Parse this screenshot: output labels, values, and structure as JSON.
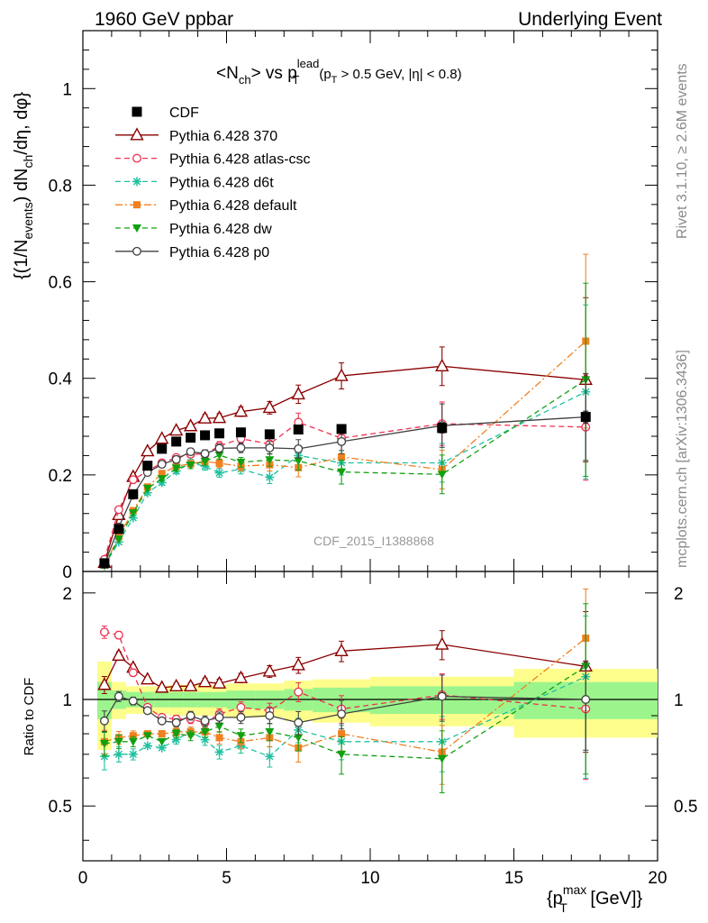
{
  "header": {
    "left": "1960 GeV ppbar",
    "right": "Underlying Event"
  },
  "side_labels": {
    "rivet": "Rivet 3.1.10, ≥ 2.6M events",
    "mcplots": "mcplots.cern.ch [arXiv:1306.3436]"
  },
  "watermark": "CDF_2015_I1388868",
  "plot_title": {
    "main": "<N",
    "main_sub": "ch",
    "vs": "> vs p",
    "vs_sup": "lead",
    "vs_sub": "T",
    "cut": "(p",
    "cut_sub": "T",
    "cut_rest": " > 0.5 GeV, |η| < 0.8)"
  },
  "axes": {
    "ylabel_top": "{(1/N",
    "ylabel_top_sub": "events",
    "ylabel_top_rest": ") dN",
    "ylabel_top_sub2": "ch",
    "ylabel_top_end": "/dη, dφ}",
    "ylabel_ratio": "Ratio to CDF",
    "xlabel": "{p",
    "xlabel_sup": "max",
    "xlabel_sub": "T",
    "xlabel_end": " [GeV]}"
  },
  "colors": {
    "cdf": "#000000",
    "p370": "#8b0000",
    "atlas": "#f03050",
    "d6t": "#20c0a0",
    "default": "#f08020",
    "dw": "#10a010",
    "p0": "#404040",
    "band_inner": "#9cf58c",
    "band_outer": "#fdfd8c"
  },
  "chart_data": [
    {
      "type": "scatter",
      "panel": "main",
      "xlim": [
        0,
        20
      ],
      "ylim": [
        0,
        1.12
      ],
      "x_ticks": [
        "0",
        "5",
        "10",
        "15",
        "20"
      ],
      "y_ticks": [
        "0",
        "0.2",
        "0.4",
        "0.6",
        "0.8",
        "1"
      ],
      "x": [
        0.75,
        1.25,
        1.75,
        2.25,
        2.75,
        3.25,
        3.75,
        4.25,
        4.75,
        5.5,
        6.5,
        7.5,
        9.0,
        12.5,
        17.5
      ],
      "series": [
        {
          "name": "CDF",
          "key": "cdf",
          "marker": "square",
          "line": "none",
          "values": [
            0.017,
            0.088,
            0.16,
            0.219,
            0.254,
            0.269,
            0.277,
            0.282,
            0.286,
            0.288,
            0.284,
            0.294,
            0.295,
            0.297,
            0.32
          ],
          "errors": [
            0.002,
            0.003,
            0.004,
            0.004,
            0.005,
            0.005,
            0.005,
            0.005,
            0.005,
            0.006,
            0.006,
            0.007,
            0.008,
            0.01,
            0.012
          ]
        },
        {
          "name": "Pythia 6.428 370",
          "key": "p370",
          "marker": "triangle-open",
          "line": "solid",
          "values": [
            0.018,
            0.117,
            0.196,
            0.249,
            0.275,
            0.292,
            0.301,
            0.317,
            0.318,
            0.331,
            0.339,
            0.367,
            0.405,
            0.425,
            0.397
          ],
          "errors": [
            0.001,
            0.003,
            0.004,
            0.004,
            0.005,
            0.006,
            0.007,
            0.008,
            0.009,
            0.01,
            0.013,
            0.019,
            0.027,
            0.04,
            0.17
          ]
        },
        {
          "name": "Pythia 6.428 atlas-csc",
          "key": "atlas",
          "marker": "circle-open",
          "line": "dashed",
          "values": [
            0.025,
            0.128,
            0.19,
            0.208,
            0.225,
            0.236,
            0.243,
            0.243,
            0.26,
            0.275,
            0.264,
            0.309,
            0.276,
            0.306,
            0.299
          ],
          "errors": [
            0.001,
            0.003,
            0.004,
            0.004,
            0.005,
            0.006,
            0.007,
            0.008,
            0.009,
            0.01,
            0.013,
            0.019,
            0.025,
            0.045,
            0.11
          ]
        },
        {
          "name": "Pythia 6.428 d6t",
          "key": "d6t",
          "marker": "star",
          "line": "dashed",
          "values": [
            0.012,
            0.061,
            0.111,
            0.163,
            0.184,
            0.208,
            0.225,
            0.218,
            0.204,
            0.212,
            0.195,
            0.24,
            0.225,
            0.225,
            0.372
          ],
          "errors": [
            0.001,
            0.003,
            0.004,
            0.004,
            0.005,
            0.006,
            0.007,
            0.008,
            0.009,
            0.01,
            0.013,
            0.019,
            0.025,
            0.04,
            0.18
          ]
        },
        {
          "name": "Pythia 6.428 default",
          "key": "default",
          "marker": "square-filled",
          "line": "dashdot",
          "values": [
            0.013,
            0.072,
            0.126,
            0.175,
            0.203,
            0.218,
            0.223,
            0.228,
            0.224,
            0.218,
            0.221,
            0.215,
            0.237,
            0.211,
            0.477
          ],
          "errors": [
            0.001,
            0.003,
            0.004,
            0.004,
            0.005,
            0.006,
            0.007,
            0.008,
            0.009,
            0.01,
            0.013,
            0.019,
            0.025,
            0.04,
            0.18
          ]
        },
        {
          "name": "Pythia 6.428 dw",
          "key": "dw",
          "marker": "triangle-down-filled",
          "line": "dashed",
          "values": [
            0.013,
            0.067,
            0.121,
            0.172,
            0.192,
            0.214,
            0.22,
            0.228,
            0.241,
            0.226,
            0.231,
            0.229,
            0.206,
            0.201,
            0.397
          ],
          "errors": [
            0.001,
            0.003,
            0.004,
            0.004,
            0.005,
            0.006,
            0.007,
            0.008,
            0.009,
            0.01,
            0.013,
            0.019,
            0.025,
            0.04,
            0.2
          ]
        },
        {
          "name": "Pythia 6.428 p0",
          "key": "p0",
          "marker": "circle-open",
          "line": "solid",
          "values": [
            0.015,
            0.092,
            0.158,
            0.205,
            0.222,
            0.232,
            0.248,
            0.244,
            0.255,
            0.256,
            0.256,
            0.254,
            0.269,
            0.302,
            0.32
          ],
          "errors": [
            0.001,
            0.003,
            0.004,
            0.004,
            0.005,
            0.006,
            0.007,
            0.008,
            0.009,
            0.01,
            0.013,
            0.019,
            0.025,
            0.045,
            0.09
          ]
        }
      ]
    },
    {
      "type": "scatter",
      "panel": "ratio",
      "ylabel": "Ratio to CDF",
      "xlim": [
        0,
        20
      ],
      "ylim": [
        0.35,
        2.3
      ],
      "y_ticks": [
        "0.5",
        "1",
        "2"
      ],
      "x": [
        0.75,
        1.25,
        1.75,
        2.25,
        2.75,
        3.25,
        3.75,
        4.25,
        4.75,
        5.5,
        6.5,
        7.5,
        9.0,
        12.5,
        17.5
      ],
      "bins": [
        [
          0.5,
          1.0
        ],
        [
          1.0,
          1.5
        ],
        [
          1.5,
          2.0
        ],
        [
          2.0,
          2.5
        ],
        [
          2.5,
          3.0
        ],
        [
          3.0,
          3.5
        ],
        [
          3.5,
          4.0
        ],
        [
          4.0,
          4.5
        ],
        [
          4.5,
          5.0
        ],
        [
          5.0,
          6.0
        ],
        [
          6.0,
          7.0
        ],
        [
          7.0,
          8.0
        ],
        [
          8.0,
          10.0
        ],
        [
          10.0,
          15.0
        ],
        [
          15.0,
          20.0
        ]
      ],
      "band_inner": [
        0.88,
        0.94,
        0.95,
        0.95,
        0.95,
        0.95,
        0.95,
        0.95,
        0.95,
        0.94,
        0.94,
        0.93,
        0.92,
        0.91,
        0.88
      ],
      "band_outer": [
        0.72,
        0.88,
        0.91,
        0.91,
        0.91,
        0.9,
        0.9,
        0.9,
        0.9,
        0.89,
        0.89,
        0.87,
        0.86,
        0.84,
        0.78
      ],
      "series": [
        {
          "name": "Pythia 6.428 370",
          "key": "p370",
          "values": [
            1.1,
            1.33,
            1.23,
            1.14,
            1.08,
            1.09,
            1.09,
            1.12,
            1.11,
            1.15,
            1.2,
            1.25,
            1.37,
            1.43,
            1.24
          ]
        },
        {
          "name": "Pythia 6.428 atlas-csc",
          "key": "atlas",
          "values": [
            1.55,
            1.52,
            1.19,
            0.95,
            0.89,
            0.88,
            0.88,
            0.86,
            0.91,
            0.95,
            0.93,
            1.05,
            0.94,
            1.03,
            0.94
          ]
        },
        {
          "name": "Pythia 6.428 d6t",
          "key": "d6t",
          "values": [
            0.69,
            0.7,
            0.7,
            0.74,
            0.73,
            0.77,
            0.81,
            0.77,
            0.71,
            0.74,
            0.69,
            0.82,
            0.76,
            0.76,
            1.16
          ]
        },
        {
          "name": "Pythia 6.428 default",
          "key": "default",
          "values": [
            0.76,
            0.78,
            0.79,
            0.8,
            0.8,
            0.81,
            0.81,
            0.81,
            0.78,
            0.76,
            0.78,
            0.73,
            0.8,
            0.71,
            1.49
          ]
        },
        {
          "name": "Pythia 6.428 dw",
          "key": "dw",
          "values": [
            0.75,
            0.76,
            0.76,
            0.79,
            0.76,
            0.8,
            0.79,
            0.81,
            0.84,
            0.79,
            0.81,
            0.78,
            0.7,
            0.68,
            1.24
          ]
        },
        {
          "name": "Pythia 6.428 p0",
          "key": "p0",
          "values": [
            0.87,
            1.02,
            0.99,
            0.93,
            0.87,
            0.86,
            0.9,
            0.87,
            0.89,
            0.89,
            0.9,
            0.86,
            0.91,
            1.02,
            1.0
          ]
        }
      ]
    }
  ]
}
